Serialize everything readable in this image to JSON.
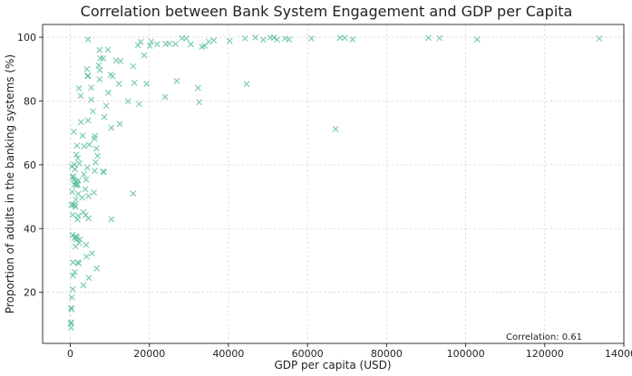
{
  "chart_data": {
    "type": "scatter",
    "title": "Correlation between Bank System Engagement and GDP per Capita",
    "xlabel": "GDP per capita (USD)",
    "ylabel": "Proportion of adults in the banking systems (%)",
    "xlim": [
      -7000,
      140000
    ],
    "ylim": [
      4,
      104
    ],
    "xticks": [
      0,
      20000,
      40000,
      60000,
      80000,
      100000,
      120000,
      140000
    ],
    "yticks": [
      20,
      40,
      60,
      80,
      100
    ],
    "grid": true,
    "marker": "x",
    "marker_color": "#5ebfa0",
    "annotation": {
      "text": "Correlation: 0.61",
      "position": "bottom-right"
    },
    "points": [
      [
        133800,
        99.6
      ],
      [
        102900,
        99.3
      ],
      [
        93400,
        99.7
      ],
      [
        90600,
        99.8
      ],
      [
        71400,
        99.3
      ],
      [
        69400,
        99.8
      ],
      [
        68200,
        99.8
      ],
      [
        67100,
        71.2
      ],
      [
        61000,
        99.6
      ],
      [
        55300,
        99.3
      ],
      [
        54300,
        99.6
      ],
      [
        52300,
        99.3
      ],
      [
        51500,
        99.9
      ],
      [
        50600,
        99.9
      ],
      [
        48800,
        99.2
      ],
      [
        46800,
        99.9
      ],
      [
        44600,
        85.3
      ],
      [
        44200,
        99.6
      ],
      [
        40300,
        98.8
      ],
      [
        36300,
        99.0
      ],
      [
        35000,
        98.6
      ],
      [
        34000,
        97.3
      ],
      [
        33300,
        97.0
      ],
      [
        32600,
        79.6
      ],
      [
        32300,
        84.1
      ],
      [
        30500,
        97.8
      ],
      [
        29300,
        99.6
      ],
      [
        28300,
        99.7
      ],
      [
        26900,
        86.3
      ],
      [
        26600,
        97.9
      ],
      [
        25000,
        98.0
      ],
      [
        24100,
        97.9
      ],
      [
        24000,
        81.3
      ],
      [
        22000,
        97.8
      ],
      [
        20500,
        98.6
      ],
      [
        20100,
        97.3
      ],
      [
        19300,
        85.4
      ],
      [
        18700,
        94.3
      ],
      [
        17800,
        98.5
      ],
      [
        17400,
        79.0
      ],
      [
        17100,
        97.5
      ],
      [
        16200,
        85.7
      ],
      [
        15900,
        51.0
      ],
      [
        15900,
        90.9
      ],
      [
        14600,
        79.9
      ],
      [
        12700,
        92.5
      ],
      [
        12500,
        72.8
      ],
      [
        12300,
        85.4
      ],
      [
        11600,
        92.7
      ],
      [
        10700,
        87.8
      ],
      [
        10400,
        71.6
      ],
      [
        10400,
        42.9
      ],
      [
        10200,
        88.3
      ],
      [
        9600,
        82.6
      ],
      [
        9500,
        96.1
      ],
      [
        9100,
        78.5
      ],
      [
        8600,
        75.0
      ],
      [
        8500,
        57.7
      ],
      [
        8300,
        93.4
      ],
      [
        8300,
        57.9
      ],
      [
        7600,
        93.4
      ],
      [
        7500,
        89.7
      ],
      [
        7400,
        96.0
      ],
      [
        7400,
        86.8
      ],
      [
        7200,
        91.2
      ],
      [
        6900,
        62.8
      ],
      [
        6700,
        27.5
      ],
      [
        6600,
        65.1
      ],
      [
        6400,
        60.8
      ],
      [
        6200,
        58.1
      ],
      [
        6200,
        69.0
      ],
      [
        6100,
        68.2
      ],
      [
        6000,
        51.3
      ],
      [
        5700,
        76.8
      ],
      [
        5500,
        32.2
      ],
      [
        5300,
        80.4
      ],
      [
        5300,
        84.2
      ],
      [
        4800,
        66.3
      ],
      [
        4700,
        24.5
      ],
      [
        4600,
        43.2
      ],
      [
        4600,
        50.2
      ],
      [
        4500,
        99.3
      ],
      [
        4500,
        88.0
      ],
      [
        4500,
        73.9
      ],
      [
        4400,
        87.8
      ],
      [
        4300,
        59.1
      ],
      [
        4200,
        90.0
      ],
      [
        4100,
        31.2
      ],
      [
        4000,
        55.4
      ],
      [
        4000,
        34.9
      ],
      [
        3900,
        44.3
      ],
      [
        3800,
        52.3
      ],
      [
        3500,
        65.8
      ],
      [
        3400,
        57.0
      ],
      [
        3300,
        45.1
      ],
      [
        3300,
        22.2
      ],
      [
        3100,
        69.1
      ],
      [
        3000,
        49.7
      ],
      [
        2700,
        73.4
      ],
      [
        2600,
        81.6
      ],
      [
        2400,
        36.6
      ],
      [
        2300,
        60.4
      ],
      [
        2200,
        84.0
      ],
      [
        2200,
        35.5
      ],
      [
        2100,
        29.1
      ],
      [
        2000,
        55.0
      ],
      [
        2000,
        50.9
      ],
      [
        2000,
        44.0
      ],
      [
        1900,
        62.1
      ],
      [
        1900,
        29.4
      ],
      [
        1800,
        54.1
      ],
      [
        1800,
        42.9
      ],
      [
        1700,
        66.0
      ],
      [
        1700,
        53.7
      ],
      [
        1600,
        36.7
      ],
      [
        1600,
        37.4
      ],
      [
        1500,
        63.2
      ],
      [
        1500,
        53.6
      ],
      [
        1400,
        49.1
      ],
      [
        1400,
        37.5
      ],
      [
        1300,
        54.8
      ],
      [
        1300,
        46.8
      ],
      [
        1300,
        34.4
      ],
      [
        1200,
        58.6
      ],
      [
        1100,
        26.4
      ],
      [
        1100,
        47.3
      ],
      [
        1000,
        60.1
      ],
      [
        1000,
        53.8
      ],
      [
        1000,
        37.0
      ],
      [
        900,
        70.4
      ],
      [
        900,
        55.4
      ],
      [
        800,
        56.4
      ],
      [
        800,
        47.5
      ],
      [
        700,
        29.4
      ],
      [
        700,
        25.3
      ],
      [
        600,
        56.1
      ],
      [
        600,
        44.3
      ],
      [
        600,
        38.0
      ],
      [
        600,
        21.0
      ],
      [
        500,
        51.5
      ],
      [
        400,
        59.5
      ],
      [
        400,
        18.4
      ],
      [
        300,
        47.4
      ],
      [
        300,
        14.7
      ],
      [
        200,
        15.1
      ],
      [
        200,
        10.6
      ],
      [
        200,
        8.9
      ],
      [
        100,
        10.2
      ]
    ]
  }
}
